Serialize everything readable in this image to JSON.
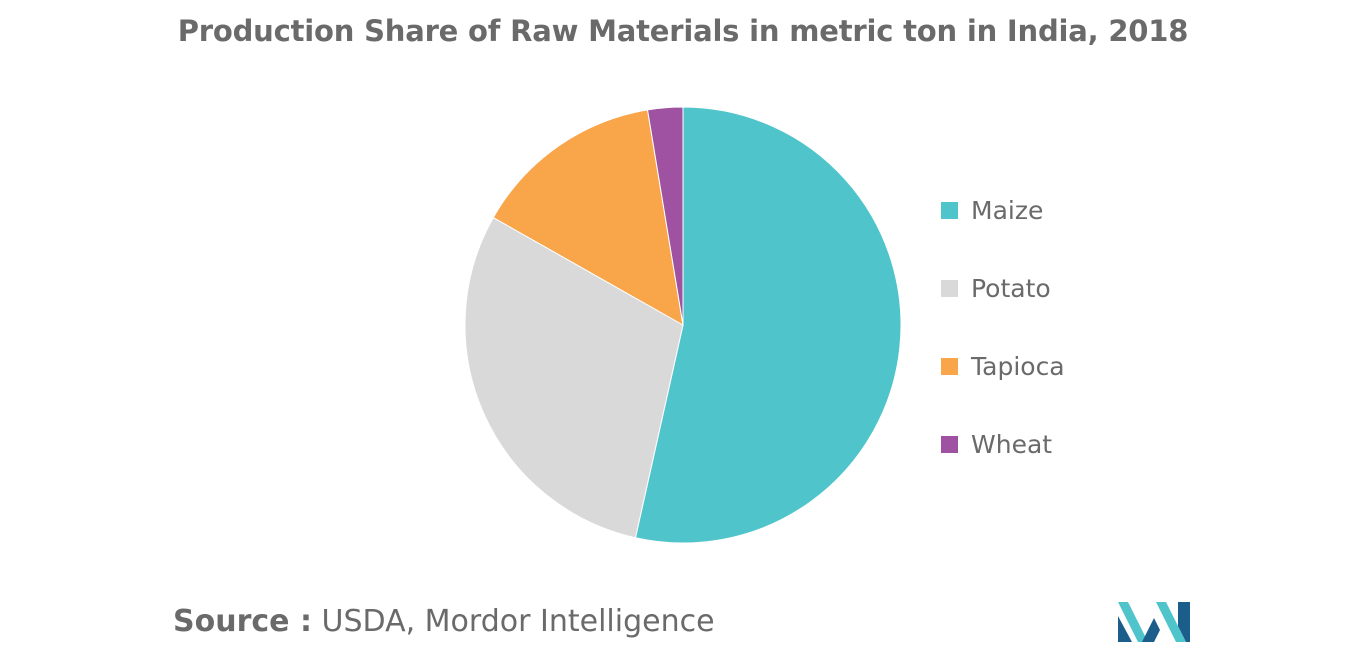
{
  "chart_data": {
    "type": "pie",
    "title": "Production Share of Raw Materials in metric ton in India, 2018",
    "legend_position": "right",
    "categories": [
      "Maize",
      "Potato",
      "Tapioca",
      "Wheat"
    ],
    "values": [
      53.5,
      29.7,
      14.2,
      2.6
    ],
    "colors": [
      "#4fc4ca",
      "#d9d9d9",
      "#f9a54a",
      "#9e52a1"
    ],
    "start_angle_deg": 0,
    "direction": "clockwise"
  },
  "source": {
    "label": "Source :",
    "text": "USDA, Mordor Intelligence"
  },
  "logo": {
    "icon": "mordor-intelligence-logo-icon",
    "colors": [
      "#1b5e8c",
      "#4fc4ca"
    ]
  }
}
